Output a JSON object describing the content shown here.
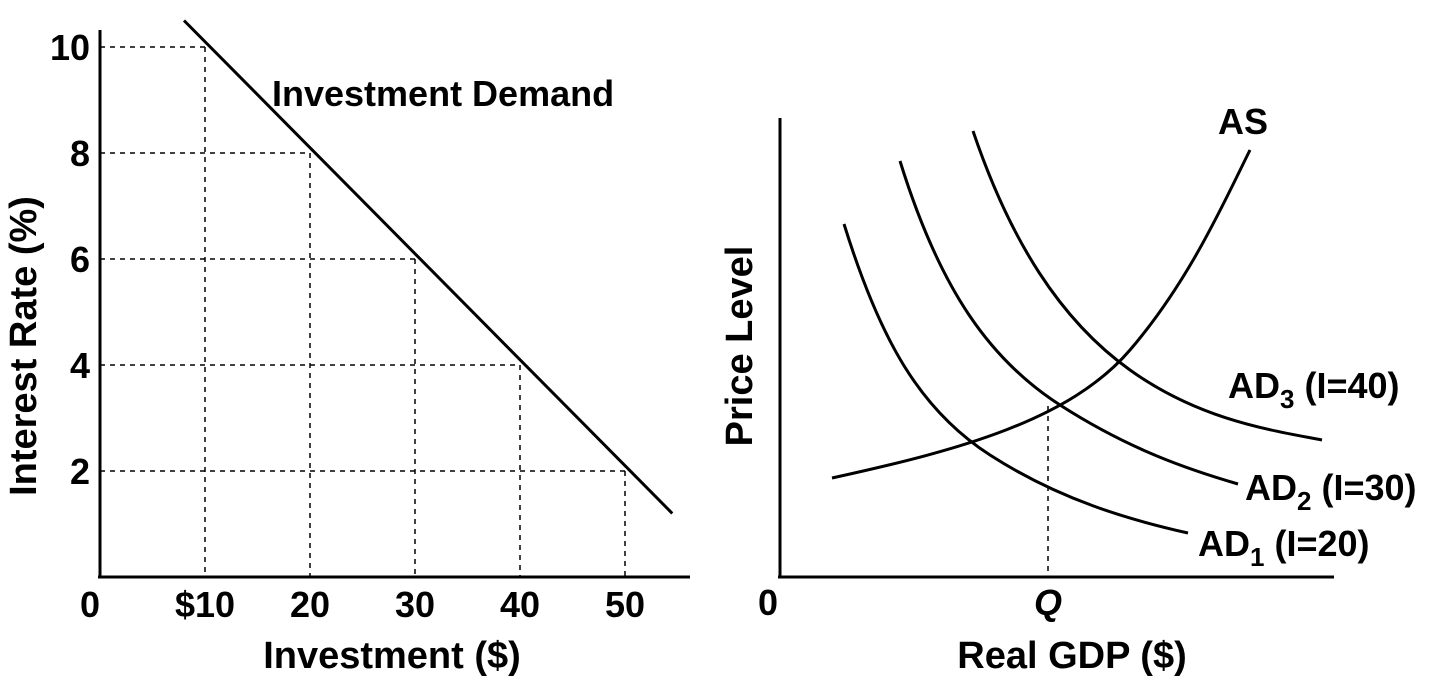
{
  "chart_data": [
    {
      "type": "line",
      "title": "",
      "curve_label": "Investment Demand",
      "xlabel": "Investment ($)",
      "ylabel": "Interest Rate (%)",
      "origin_label": "0",
      "x_ticks": [
        "$10",
        "20",
        "30",
        "40",
        "50"
      ],
      "x_tick_values": [
        10,
        20,
        30,
        40,
        50
      ],
      "y_ticks": [
        "2",
        "4",
        "6",
        "8",
        "10"
      ],
      "y_tick_values": [
        2,
        4,
        6,
        8,
        10
      ],
      "xlim": [
        0,
        56
      ],
      "ylim": [
        0,
        10.8
      ],
      "series": [
        {
          "x": [
            8,
            54.5
          ],
          "y": [
            10.5,
            1.2
          ]
        }
      ],
      "guides": [
        {
          "x": 10,
          "y": 10
        },
        {
          "x": 20,
          "y": 8
        },
        {
          "x": 30,
          "y": 6
        },
        {
          "x": 40,
          "y": 4
        },
        {
          "x": 50,
          "y": 2
        }
      ]
    },
    {
      "type": "line",
      "title": "",
      "xlabel": "Real GDP ($)",
      "ylabel": "Price Level",
      "origin_label": "0",
      "x_ticks": [
        "Q"
      ],
      "grid": false,
      "series": [
        {
          "name": "AS",
          "label": "AS"
        },
        {
          "name": "AD1",
          "label_main": "AD",
          "label_sub": "1",
          "label_tail": " (I=20)"
        },
        {
          "name": "AD2",
          "label_main": "AD",
          "label_sub": "2",
          "label_tail": " (I=30)"
        },
        {
          "name": "AD3",
          "label_main": "AD",
          "label_sub": "3",
          "label_tail": " (I=40)"
        }
      ]
    }
  ]
}
